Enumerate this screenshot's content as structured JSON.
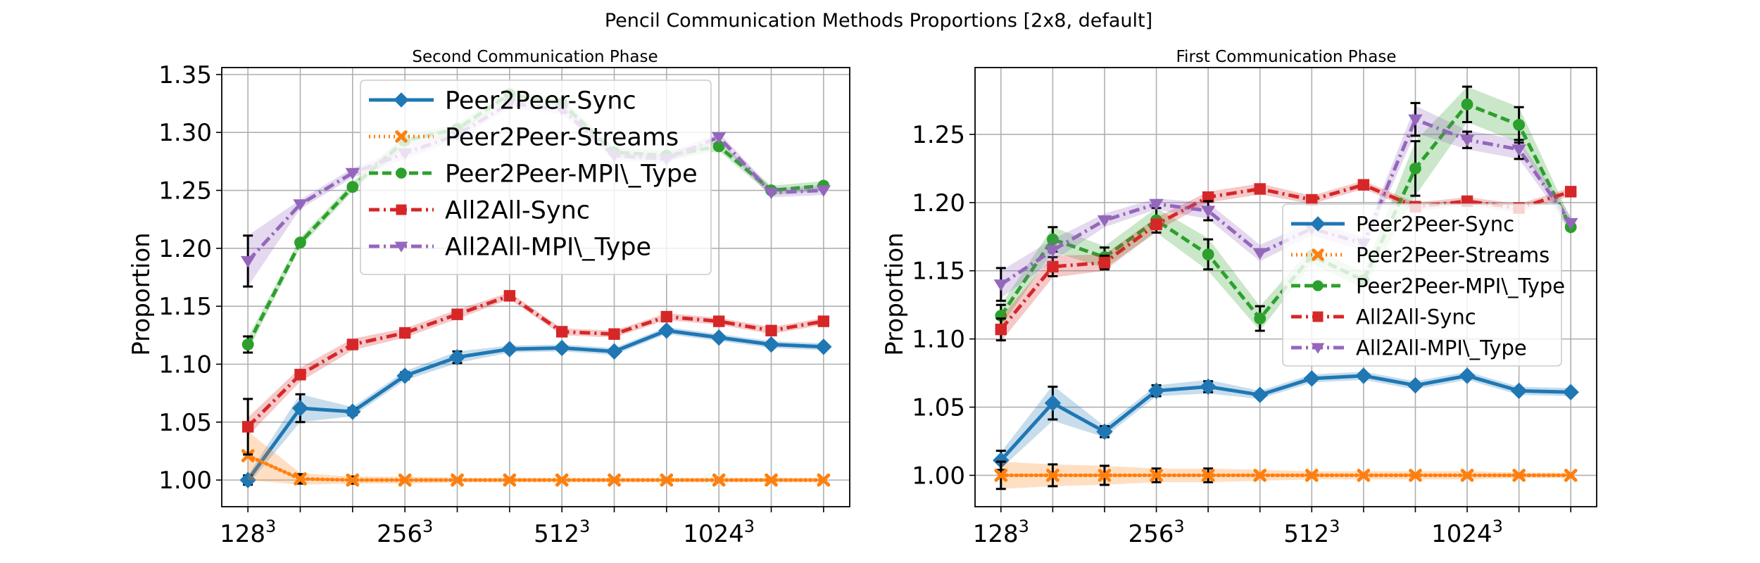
{
  "figure": {
    "suptitle": "Pencil Communication Methods Proportions [2x8, default]"
  },
  "series_styles": [
    {
      "name": "Peer2Peer-Sync",
      "color": "#1f77b4",
      "dash": "solid",
      "marker": "diamond"
    },
    {
      "name": "Peer2Peer-Streams",
      "color": "#ff7f0e",
      "dash": "dotted",
      "marker": "x"
    },
    {
      "name": "Peer2Peer-MPI\\_Type",
      "color": "#2ca02c",
      "dash": "dashed",
      "marker": "circle"
    },
    {
      "name": "All2All-Sync",
      "color": "#d62728",
      "dash": "dashdot",
      "marker": "square"
    },
    {
      "name": "All2All-MPI\\_Type",
      "color": "#9467bd",
      "dash": "dashdot",
      "marker": "triangle-down"
    }
  ],
  "chart_data": [
    {
      "type": "line",
      "title": "Second Communication Phase",
      "ylabel": "Proportion",
      "xlabel": "",
      "x_ticks": [
        {
          "x": 0,
          "base": "128",
          "exp": "3"
        },
        {
          "x": 3,
          "base": "256",
          "exp": "3"
        },
        {
          "x": 6,
          "base": "512",
          "exp": "3"
        },
        {
          "x": 9,
          "base": "1024",
          "exp": "3"
        }
      ],
      "y_ticks": [
        "1.00",
        "1.05",
        "1.10",
        "1.15",
        "1.20",
        "1.25",
        "1.30",
        "1.35"
      ],
      "ylim": [
        0.977,
        1.356
      ],
      "xlim": [
        -0.5,
        11.5
      ],
      "x": [
        0,
        1,
        2,
        3,
        4,
        5,
        6,
        7,
        8,
        9,
        10,
        11
      ],
      "grid": true,
      "legend": "top-center",
      "series": [
        {
          "name": "Peer2Peer-Sync",
          "values": [
            1.0,
            1.062,
            1.059,
            1.09,
            1.106,
            1.113,
            1.114,
            1.111,
            1.129,
            1.123,
            1.117,
            1.115
          ],
          "band": [
            0.004,
            0.012,
            0.004,
            0.004,
            0.005,
            0.003,
            0.003,
            0.003,
            0.003,
            0.003,
            0.003,
            0.003
          ],
          "err": [
            0.004,
            0.012,
            0.003,
            0.003,
            0.005,
            0.0,
            0.0,
            0.0,
            0.0,
            0.0,
            0.0,
            0.0
          ]
        },
        {
          "name": "Peer2Peer-Streams",
          "values": [
            1.021,
            1.001,
            1.0,
            1.0,
            1.0,
            1.0,
            1.0,
            1.0,
            1.0,
            1.0,
            1.0,
            1.0
          ],
          "band": [
            0.021,
            0.005,
            0.003,
            0.003,
            0.002,
            0.002,
            0.002,
            0.002,
            0.002,
            0.002,
            0.002,
            0.002
          ],
          "err": [
            0.0,
            0.004,
            0.003,
            0.0,
            0.0,
            0.0,
            0.0,
            0.0,
            0.0,
            0.0,
            0.0,
            0.0
          ]
        },
        {
          "name": "Peer2Peer-MPI\\_Type",
          "values": [
            1.117,
            1.205,
            1.253,
            1.293,
            1.303,
            1.333,
            1.325,
            1.283,
            1.28,
            1.288,
            1.25,
            1.254
          ],
          "band": [
            0.006,
            0.004,
            0.004,
            0.005,
            0.004,
            0.004,
            0.004,
            0.004,
            0.004,
            0.004,
            0.004,
            0.004
          ],
          "err": [
            0.007,
            0.0,
            0.0,
            0.0,
            0.0,
            0.0,
            0.0,
            0.0,
            0.0,
            0.0,
            0.0,
            0.0
          ]
        },
        {
          "name": "All2All-Sync",
          "values": [
            1.046,
            1.091,
            1.117,
            1.127,
            1.143,
            1.159,
            1.128,
            1.126,
            1.141,
            1.137,
            1.129,
            1.137
          ],
          "band": [
            0.008,
            0.006,
            0.005,
            0.004,
            0.004,
            0.003,
            0.003,
            0.003,
            0.003,
            0.003,
            0.003,
            0.003
          ],
          "err": [
            0.024,
            0.0,
            0.0,
            0.0,
            0.0,
            0.0,
            0.0,
            0.0,
            0.0,
            0.0,
            0.0,
            0.0
          ]
        },
        {
          "name": "All2All-MPI\\_Type",
          "values": [
            1.189,
            1.238,
            1.265,
            1.282,
            1.298,
            1.325,
            1.32,
            1.28,
            1.277,
            1.296,
            1.248,
            1.25
          ],
          "band": [
            0.022,
            0.004,
            0.004,
            0.005,
            0.004,
            0.004,
            0.004,
            0.004,
            0.004,
            0.004,
            0.004,
            0.004
          ],
          "err": [
            0.022,
            0.0,
            0.0,
            0.0,
            0.0,
            0.0,
            0.0,
            0.0,
            0.0,
            0.0,
            0.0,
            0.0
          ]
        }
      ]
    },
    {
      "type": "line",
      "title": "First Communication Phase",
      "ylabel": "Proportion",
      "xlabel": "",
      "x_ticks": [
        {
          "x": 0,
          "base": "128",
          "exp": "3"
        },
        {
          "x": 3,
          "base": "256",
          "exp": "3"
        },
        {
          "x": 6,
          "base": "512",
          "exp": "3"
        },
        {
          "x": 9,
          "base": "1024",
          "exp": "3"
        }
      ],
      "y_ticks": [
        "1.00",
        "1.05",
        "1.10",
        "1.15",
        "1.20",
        "1.25"
      ],
      "ylim": [
        0.977,
        1.299
      ],
      "xlim": [
        -0.5,
        11.5
      ],
      "x": [
        0,
        1,
        2,
        3,
        4,
        5,
        6,
        7,
        8,
        9,
        10,
        11
      ],
      "grid": true,
      "legend": "center-right",
      "series": [
        {
          "name": "Peer2Peer-Sync",
          "values": [
            1.011,
            1.053,
            1.032,
            1.062,
            1.065,
            1.059,
            1.071,
            1.073,
            1.066,
            1.073,
            1.062,
            1.061
          ],
          "band": [
            0.006,
            0.013,
            0.004,
            0.004,
            0.005,
            0.003,
            0.003,
            0.003,
            0.003,
            0.003,
            0.003,
            0.003
          ],
          "err": [
            0.007,
            0.012,
            0.004,
            0.004,
            0.004,
            0.0,
            0.0,
            0.0,
            0.0,
            0.0,
            0.0,
            0.0
          ]
        },
        {
          "name": "Peer2Peer-Streams",
          "values": [
            1.0,
            1.0,
            1.0,
            1.0,
            1.0,
            1.0,
            1.0,
            1.0,
            1.0,
            1.0,
            1.0,
            1.0
          ],
          "band": [
            0.01,
            0.008,
            0.007,
            0.005,
            0.005,
            0.004,
            0.003,
            0.003,
            0.003,
            0.003,
            0.002,
            0.002
          ],
          "err": [
            0.01,
            0.008,
            0.007,
            0.005,
            0.005,
            0.0,
            0.0,
            0.0,
            0.0,
            0.0,
            0.0,
            0.0
          ]
        },
        {
          "name": "Peer2Peer-MPI\\_Type",
          "values": [
            1.117,
            1.173,
            1.16,
            1.187,
            1.162,
            1.115,
            1.161,
            1.143,
            1.225,
            1.272,
            1.257,
            1.182
          ],
          "band": [
            0.008,
            0.009,
            0.008,
            0.009,
            0.012,
            0.009,
            0.006,
            0.006,
            0.02,
            0.013,
            0.013,
            0.006
          ],
          "err": [
            0.008,
            0.009,
            0.007,
            0.009,
            0.011,
            0.009,
            0.0,
            0.0,
            0.02,
            0.013,
            0.013,
            0.0
          ]
        },
        {
          "name": "All2All-Sync",
          "values": [
            1.107,
            1.153,
            1.156,
            1.184,
            1.204,
            1.21,
            1.202,
            1.213,
            1.197,
            1.201,
            1.196,
            1.208
          ],
          "band": [
            0.009,
            0.008,
            0.006,
            0.005,
            0.004,
            0.004,
            0.003,
            0.003,
            0.003,
            0.003,
            0.003,
            0.003
          ],
          "err": [
            0.008,
            0.007,
            0.005,
            0.0,
            0.0,
            0.0,
            0.0,
            0.0,
            0.0,
            0.0,
            0.0,
            0.0
          ]
        },
        {
          "name": "All2All-MPI\\_Type",
          "values": [
            1.14,
            1.165,
            1.187,
            1.199,
            1.194,
            1.163,
            1.181,
            1.17,
            1.261,
            1.246,
            1.239,
            1.185
          ],
          "band": [
            0.01,
            0.008,
            0.005,
            0.004,
            0.006,
            0.006,
            0.005,
            0.005,
            0.01,
            0.007,
            0.007,
            0.005
          ],
          "err": [
            0.012,
            0.0,
            0.0,
            0.0,
            0.007,
            0.0,
            0.0,
            0.0,
            0.012,
            0.006,
            0.007,
            0.0
          ]
        }
      ]
    }
  ]
}
